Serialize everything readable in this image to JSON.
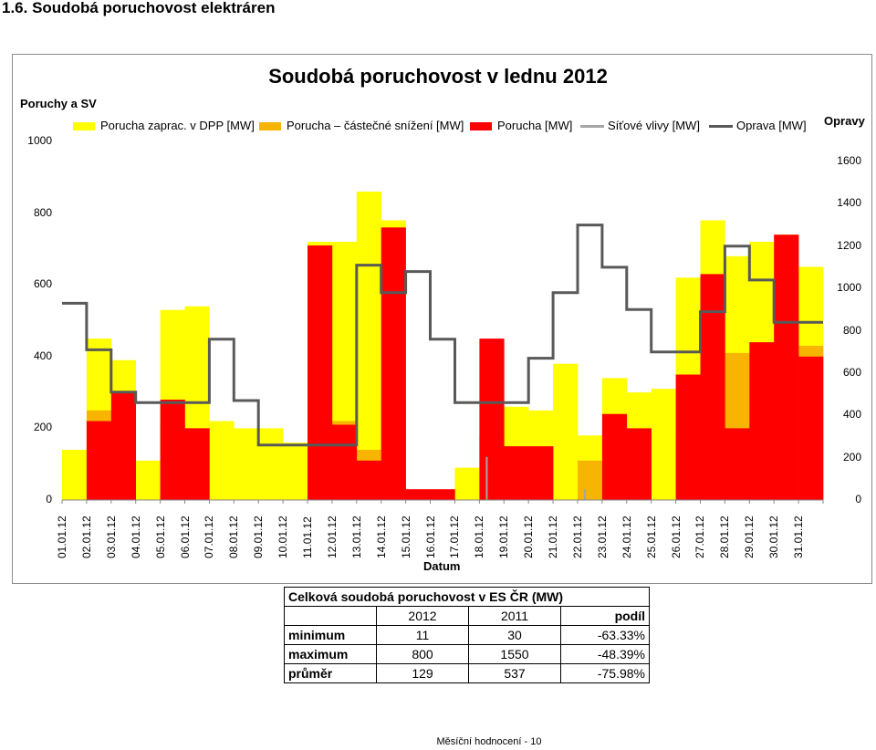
{
  "page": {
    "heading": "1.6. Soudobá poruchovost elektráren",
    "footer": "Měsíční hodnocení - 10"
  },
  "chart_data": {
    "type": "area",
    "title": "Soudobá poruchovost v lednu 2012",
    "ylabel_left": "Poruchy a SV",
    "ylabel_right": "Opravy",
    "xlabel": "Datum",
    "ylim_left": [
      0,
      1000
    ],
    "ylim_right": [
      0,
      1600
    ],
    "yticks_left": [
      "0",
      "200",
      "400",
      "600",
      "800",
      "1000"
    ],
    "yticks_right": [
      "0",
      "200",
      "400",
      "600",
      "800",
      "1000",
      "1200",
      "1400",
      "1600"
    ],
    "grid": false,
    "legend_position": "top",
    "categories": [
      "01.01.12",
      "02.01.12",
      "03.01.12",
      "04.01.12",
      "05.01.12",
      "06.01.12",
      "07.01.12",
      "08.01.12",
      "09.01.12",
      "10.01.12",
      "11.01.12",
      "12.01.12",
      "13.01.12",
      "14.01.12",
      "15.01.12",
      "16.01.12",
      "17.01.12",
      "18.01.12",
      "19.01.12",
      "20.01.12",
      "21.01.12",
      "22.01.12",
      "23.01.12",
      "24.01.12",
      "25.01.12",
      "26.01.12",
      "27.01.12",
      "28.01.12",
      "29.01.12",
      "30.01.12",
      "31.01.12"
    ],
    "series": [
      {
        "name": "Porucha zaprac. v DPP [MW]",
        "axis": "left",
        "color": "#ffff00",
        "values": [
          140,
          450,
          390,
          110,
          530,
          540,
          220,
          200,
          200,
          160,
          720,
          720,
          860,
          780,
          20,
          20,
          90,
          440,
          260,
          250,
          380,
          180,
          340,
          300,
          310,
          620,
          780,
          680,
          720,
          740,
          650
        ]
      },
      {
        "name": "Porucha – částečné snížení [MW]",
        "axis": "left",
        "color": "#f7b400",
        "values": [
          0,
          250,
          240,
          0,
          210,
          200,
          0,
          0,
          0,
          0,
          220,
          220,
          140,
          280,
          0,
          0,
          0,
          180,
          0,
          0,
          0,
          110,
          0,
          0,
          0,
          180,
          520,
          410,
          420,
          540,
          430
        ]
      },
      {
        "name": "Porucha [MW]",
        "axis": "left",
        "color": "#ff0000",
        "values": [
          0,
          220,
          300,
          0,
          280,
          200,
          0,
          0,
          0,
          0,
          710,
          210,
          110,
          760,
          30,
          30,
          0,
          450,
          150,
          150,
          0,
          0,
          240,
          200,
          0,
          350,
          630,
          200,
          440,
          740,
          400
        ]
      },
      {
        "name": "Síťové vlivy [MW]",
        "axis": "left",
        "color": "#a6a6a6",
        "values": [
          0,
          0,
          0,
          0,
          0,
          0,
          0,
          0,
          0,
          0,
          0,
          0,
          0,
          0,
          0,
          0,
          0,
          120,
          0,
          0,
          0,
          30,
          0,
          0,
          0,
          0,
          0,
          0,
          0,
          0,
          0
        ]
      },
      {
        "name": "Oprava [MW]",
        "axis": "right",
        "color": "#595959",
        "values": [
          930,
          710,
          510,
          460,
          460,
          460,
          760,
          470,
          260,
          260,
          260,
          260,
          1110,
          980,
          1080,
          760,
          460,
          460,
          460,
          670,
          980,
          1300,
          1100,
          900,
          700,
          700,
          890,
          1200,
          1040,
          840,
          840
        ]
      }
    ]
  },
  "stats_table": {
    "title": "Celková soudobá poruchovost v ES ČR  (MW)",
    "columns": [
      "",
      "2012",
      "2011",
      "podíl"
    ],
    "rows": [
      [
        "minimum",
        "11",
        "30",
        "-63.33%"
      ],
      [
        "maximum",
        "800",
        "1550",
        "-48.39%"
      ],
      [
        "průměr",
        "129",
        "537",
        "-75.98%"
      ]
    ]
  }
}
